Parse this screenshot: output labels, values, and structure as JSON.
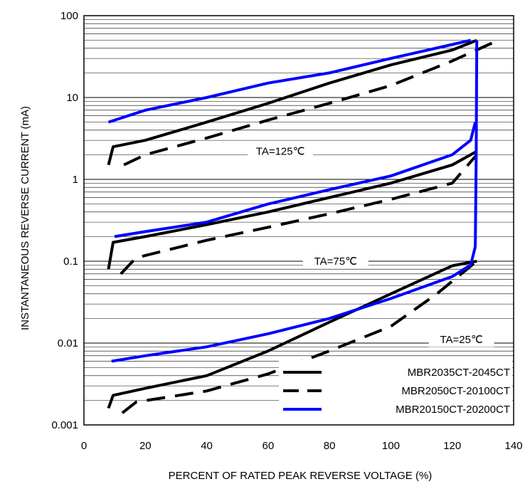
{
  "chart_data": {
    "type": "line",
    "xlabel": "PERCENT OF RATED PEAK REVERSE VOLTAGE (%)",
    "ylabel": "INSTANTANEOUS REVERSE CURRENT (mA)",
    "xlim": [
      0,
      140
    ],
    "ylim": [
      0.001,
      100
    ],
    "y_scale": "log",
    "grid": true,
    "x_ticks": [
      0,
      20,
      40,
      60,
      80,
      100,
      120,
      140
    ],
    "x_tick_labels": [
      "0",
      "20",
      "40",
      "60",
      "80",
      "100",
      "120",
      "140"
    ],
    "y_ticks": [
      0.001,
      0.01,
      0.1,
      1,
      10,
      100
    ],
    "y_tick_labels": [
      "0.001",
      "0.01",
      "0.1",
      "1",
      "10",
      "100"
    ],
    "annotations": [
      {
        "text": "TA=125℃",
        "x": 64,
        "y": 2.2
      },
      {
        "text": "TA=75℃",
        "x": 82,
        "y": 0.1
      },
      {
        "text": "TA=25℃",
        "x": 123,
        "y": 0.011
      }
    ],
    "legend": {
      "placement": "bottom-right",
      "entries": [
        "MBR2035CT-2045CT",
        "MBR2050CT-20100CT",
        "MBR20150CT-20200CT"
      ]
    },
    "series": [
      {
        "legend_index": 0,
        "color": "#000000",
        "dash": "solid",
        "points": [
          [
            8,
            1.5
          ],
          [
            9.5,
            2.5
          ],
          [
            20,
            3.0
          ],
          [
            40,
            5.0
          ],
          [
            60,
            8.5
          ],
          [
            80,
            15
          ],
          [
            100,
            25
          ],
          [
            120,
            38
          ],
          [
            128,
            50
          ],
          null,
          [
            8,
            0.08
          ],
          [
            9.5,
            0.17
          ],
          [
            20,
            0.2
          ],
          [
            40,
            0.28
          ],
          [
            60,
            0.4
          ],
          [
            80,
            0.6
          ],
          [
            100,
            0.9
          ],
          [
            120,
            1.5
          ],
          [
            128,
            2.2
          ],
          null,
          [
            8,
            0.0016
          ],
          [
            9.5,
            0.0023
          ],
          [
            20,
            0.0028
          ],
          [
            40,
            0.004
          ],
          [
            60,
            0.008
          ],
          [
            80,
            0.018
          ],
          [
            100,
            0.04
          ],
          [
            120,
            0.088
          ],
          [
            128,
            0.1
          ]
        ]
      },
      {
        "legend_index": 1,
        "color": "#000000",
        "dash": "dashed",
        "points": [
          [
            13,
            1.5
          ],
          [
            20,
            2.0
          ],
          [
            40,
            3.2
          ],
          [
            60,
            5.3
          ],
          [
            80,
            8.5
          ],
          [
            100,
            14
          ],
          [
            120,
            28
          ],
          [
            135,
            50
          ],
          null,
          [
            12,
            0.07
          ],
          [
            17,
            0.11
          ],
          [
            40,
            0.18
          ],
          [
            60,
            0.26
          ],
          [
            80,
            0.38
          ],
          [
            100,
            0.57
          ],
          [
            120,
            0.9
          ],
          [
            128,
            2.0
          ],
          null,
          [
            12.5,
            0.0014
          ],
          [
            17,
            0.0019
          ],
          [
            40,
            0.0026
          ],
          [
            60,
            0.0042
          ],
          [
            80,
            0.008
          ],
          [
            100,
            0.016
          ],
          [
            115,
            0.04
          ],
          [
            128,
            0.1
          ]
        ]
      },
      {
        "legend_index": 2,
        "color": "#0000ff",
        "dash": "solid",
        "points": [
          [
            8,
            5.0
          ],
          [
            20,
            7.0
          ],
          [
            40,
            10
          ],
          [
            60,
            15
          ],
          [
            80,
            20
          ],
          [
            100,
            30
          ],
          [
            126,
            50
          ],
          null,
          [
            10,
            0.2
          ],
          [
            20,
            0.23
          ],
          [
            40,
            0.3
          ],
          [
            60,
            0.5
          ],
          [
            80,
            0.75
          ],
          [
            100,
            1.1
          ],
          [
            120,
            2.0
          ],
          [
            126,
            3.0
          ],
          [
            127.5,
            5.0
          ],
          null,
          [
            9,
            0.006
          ],
          [
            20,
            0.007
          ],
          [
            40,
            0.009
          ],
          [
            60,
            0.013
          ],
          [
            80,
            0.02
          ],
          [
            100,
            0.035
          ],
          [
            120,
            0.065
          ],
          [
            126,
            0.09
          ],
          [
            127.5,
            0.15
          ],
          null,
          [
            127.5,
            0.15
          ],
          [
            127.8,
            2.0
          ],
          [
            128,
            50
          ]
        ]
      }
    ]
  }
}
